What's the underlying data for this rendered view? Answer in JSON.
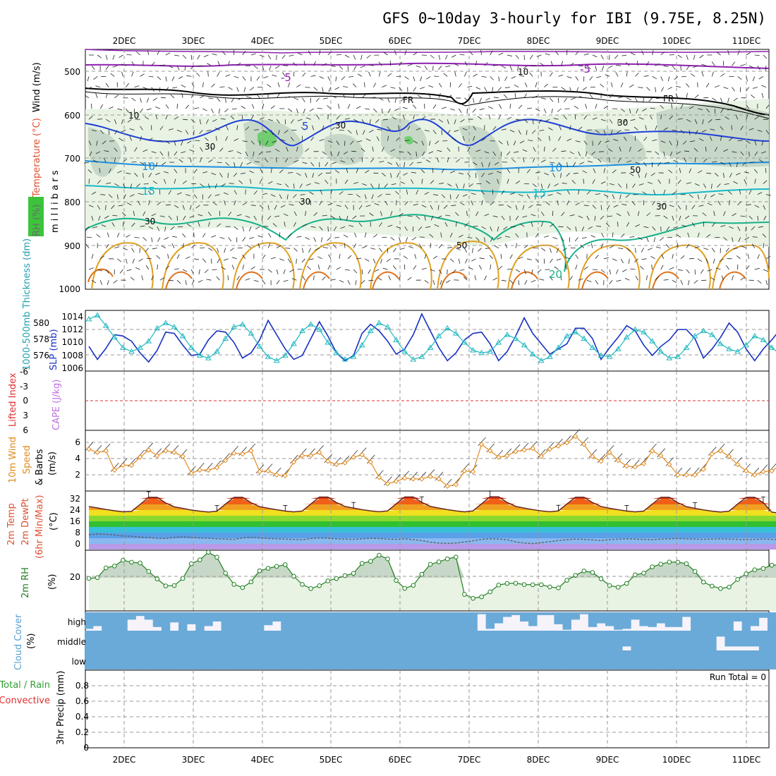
{
  "title": "GFS 0~10day 3-hourly for IBI (9.75E, 8.25N)",
  "day_labels": [
    "2DEC",
    "3DEC",
    "4DEC",
    "5DEC",
    "6DEC",
    "7DEC",
    "8DEC",
    "9DEC",
    "10DEC",
    "11DEC"
  ],
  "chart_data": [
    {
      "type": "contour",
      "panel": "upper-air",
      "ylabel_parts": [
        "RH (%)",
        "Temperature (°C)",
        "Wind (m/s)"
      ],
      "ylabel_units": "m i l l i b a r s",
      "y_ticks": [
        "500",
        "600",
        "700",
        "800",
        "900",
        "1000"
      ],
      "ylim": [
        450,
        1000
      ],
      "annotations": [
        "-5",
        "-5",
        "FR",
        "FR",
        "5",
        "10",
        "10",
        "15",
        "15",
        "20",
        "10",
        "10",
        "30",
        "30",
        "30",
        "50",
        "30",
        "30",
        "30",
        "50"
      ],
      "isotherm_colors": {
        "-5": "#8e1fb0",
        "0": "#000000",
        "5": "#1f3fd6",
        "10": "#1a8fe0",
        "15": "#18b8c8",
        "20": "#18b088",
        "25": "#e0a020",
        "30": "#e07018"
      }
    },
    {
      "type": "line",
      "panel": "slp-thickness",
      "ylabel_left": "1000-500mb Thickness (dm)",
      "ylabel_right": "SLP (mb)",
      "y_ticks_left": [
        "576",
        "578",
        "580"
      ],
      "y_ticks_right": [
        "1006",
        "1008",
        "1010",
        "1012",
        "1014"
      ],
      "series": [
        {
          "color": "#1830c0",
          "values": [
            1008.8,
            1006.8,
            1008.5,
            1010.6,
            1010.4,
            1009.6,
            1007.8,
            1006.4,
            1008.2,
            1011.0,
            1010.8,
            1009.0,
            1007.4,
            1007.6,
            1009.8,
            1011.2,
            1011.0,
            1009.4,
            1007.0,
            1007.8,
            1009.8,
            1012.8,
            1010.6,
            1008.4,
            1006.8,
            1007.4,
            1010.0,
            1012.6,
            1010.4,
            1007.8,
            1006.6,
            1007.4,
            1010.8,
            1012.2,
            1011.2,
            1009.6,
            1007.6,
            1008.4,
            1010.6,
            1013.8,
            1011.2,
            1008.6,
            1006.6,
            1007.8,
            1009.8,
            1010.8,
            1011.0,
            1009.2,
            1006.6,
            1008.0,
            1010.4,
            1013.2,
            1010.8,
            1009.2,
            1007.6,
            1008.4,
            1009.2,
            1011.6,
            1011.6,
            1010.0,
            1006.8,
            1008.6,
            1010.2,
            1012.0,
            1011.2,
            1009.0,
            1007.4,
            1008.8,
            1009.8,
            1011.4,
            1011.4,
            1010.0,
            1007.0,
            1008.4,
            1010.2,
            1012.4,
            1011.0,
            1008.4,
            1006.6,
            1008.4,
            1009.8,
            1011.4
          ]
        },
        {
          "color": "#22b8c0",
          "values": [
            1013.0,
            1013.6,
            1012.0,
            1010.2,
            1008.6,
            1008.0,
            1008.6,
            1009.6,
            1011.6,
            1012.4,
            1011.8,
            1010.4,
            1008.6,
            1007.4,
            1007.0,
            1008.0,
            1010.0,
            1011.8,
            1012.2,
            1010.8,
            1008.8,
            1007.2,
            1006.6,
            1007.4,
            1009.2,
            1011.2,
            1012.2,
            1011.4,
            1009.4,
            1007.8,
            1006.8,
            1007.2,
            1009.0,
            1011.2,
            1012.4,
            1011.8,
            1009.8,
            1008.0,
            1006.8,
            1007.2,
            1008.6,
            1010.4,
            1011.6,
            1010.8,
            1009.4,
            1008.2,
            1007.8,
            1008.0,
            1009.4,
            1010.6,
            1010.0,
            1009.0,
            1007.6,
            1006.6,
            1007.2,
            1008.6,
            1010.4,
            1011.0,
            1010.0,
            1008.6,
            1007.4,
            1007.2,
            1008.4,
            1010.2,
            1011.4,
            1011.0,
            1009.6,
            1008.0,
            1007.0,
            1007.2,
            1008.6,
            1010.4,
            1011.2,
            1010.6,
            1009.2,
            1008.4,
            1008.0,
            1009.0,
            1010.4,
            1009.8,
            1008.6,
            1007.6
          ]
        }
      ]
    },
    {
      "type": "line",
      "panel": "lifted-index",
      "ylabel_left": "Lifted Index",
      "ylabel_right": "CAPE (J/kg)",
      "y_ticks": [
        "-6",
        "-3",
        "0",
        "3",
        "6"
      ],
      "ylim": [
        -6,
        6
      ],
      "series": [
        {
          "name": "",
          "color": "#e03030",
          "values": [
            0
          ]
        }
      ]
    },
    {
      "type": "line",
      "panel": "wind10m",
      "ylabel": [
        "10m Wind",
        "Speed",
        "(m/s)",
        "& Barbs"
      ],
      "y_ticks": [
        "2",
        "4",
        "6"
      ],
      "ylim": [
        0,
        7.2
      ],
      "series": [
        {
          "color": "#e08a20",
          "values": [
            5.2,
            4.8,
            5.0,
            2.6,
            3.2,
            3.2,
            4.2,
            5.1,
            4.4,
            5.0,
            4.8,
            4.3,
            2.2,
            2.6,
            2.6,
            2.9,
            3.8,
            4.7,
            4.6,
            5.0,
            2.4,
            2.5,
            2.0,
            1.9,
            3.6,
            4.4,
            4.4,
            4.8,
            3.7,
            3.3,
            3.5,
            4.2,
            4.5,
            3.6,
            1.7,
            0.9,
            1.2,
            1.6,
            1.5,
            1.5,
            1.8,
            1.5,
            0.6,
            0.8,
            2.5,
            2.4,
            5.8,
            5.0,
            4.2,
            4.4,
            4.9,
            5.1,
            5.3,
            4.3,
            5.2,
            5.6,
            6.0,
            6.8,
            5.8,
            4.3,
            3.7,
            4.8,
            3.8,
            3.1,
            3.0,
            3.4,
            5.0,
            4.4,
            3.3,
            2.0,
            2.0,
            2.0,
            2.7,
            4.6,
            5.0,
            4.3,
            3.3,
            2.5,
            2.0,
            2.4,
            2.5,
            3.2
          ]
        }
      ]
    },
    {
      "type": "area",
      "panel": "temp2m",
      "ylabel": [
        "2m Temp",
        "2m DewPt",
        "(6hr Min/Max)",
        "(°C)"
      ],
      "y_ticks": [
        "0",
        "8",
        "16",
        "24",
        "32"
      ],
      "ylim": [
        -4,
        38
      ],
      "series": [
        {
          "name": "",
          "color": "#602020",
          "values": [
            26.5,
            25.5,
            24.4,
            23.5,
            22.8,
            23.0,
            28.0,
            33.0,
            33.0,
            29.0,
            26.3,
            25.2,
            24.0,
            23.2,
            22.6,
            23.2,
            28.2,
            33.0,
            33.0,
            29.2,
            26.4,
            25.3,
            24.2,
            23.3,
            22.7,
            23.3,
            28.3,
            33.2,
            33.2,
            29.3,
            26.5,
            25.4,
            24.3,
            23.4,
            22.8,
            23.4,
            28.4,
            33.3,
            33.3,
            29.4,
            26.6,
            25.4,
            24.3,
            23.4,
            22.7,
            23.4,
            28.4,
            33.4,
            33.4,
            29.4,
            26.6,
            25.4,
            24.3,
            23.4,
            22.8,
            23.4,
            28.3,
            33.1,
            33.1,
            29.3,
            26.5,
            25.3,
            24.2,
            23.3,
            22.7,
            23.3,
            28.2,
            33.0,
            33.0,
            29.2,
            26.4,
            25.2,
            24.1,
            23.2,
            22.6,
            23.2,
            28.2,
            33.0,
            33.0,
            29.2,
            22.5,
            21.8
          ]
        },
        {
          "name": "",
          "color": "#606060",
          "values": [
            6.5,
            7.0,
            6.8,
            6.4,
            5.6,
            5.4,
            4.8,
            4.5,
            4.0,
            3.8,
            4.6,
            5.0,
            4.6,
            4.2,
            4.0,
            3.6,
            3.4,
            3.2,
            4.2,
            4.6,
            4.2,
            3.8,
            3.6,
            3.4,
            3.2,
            3.0,
            3.8,
            4.2,
            4.0,
            3.6,
            3.4,
            3.2,
            3.6,
            4.0,
            3.8,
            3.4,
            3.2,
            3.6,
            3.0,
            2.4,
            1.2,
            0.6,
            0.3,
            0.6,
            1.4,
            2.2,
            3.2,
            3.6,
            3.4,
            3.0,
            1.4,
            0.6,
            0.2,
            0.8,
            1.6,
            2.4,
            3.0,
            3.4,
            3.2,
            2.8,
            2.4,
            3.0,
            3.4,
            3.6,
            3.4,
            3.2,
            3.0,
            3.4,
            3.6,
            3.8,
            3.6,
            3.4,
            3.2,
            3.4,
            3.6,
            3.4,
            3.2,
            3.0,
            3.2,
            3.4,
            3.2,
            3.0
          ]
        }
      ]
    },
    {
      "type": "area",
      "panel": "rh2m",
      "ylabel": [
        "2m RH",
        "(%)"
      ],
      "y_ticks": [
        "20"
      ],
      "ylim": [
        0,
        40
      ],
      "series": [
        {
          "name": "",
          "color": "#208020",
          "values": [
            19.6,
            20.1,
            26.0,
            27.1,
            30.6,
            29.4,
            28.9,
            23.8,
            19.3,
            15.1,
            15.3,
            19.6,
            28.5,
            30.8,
            35.4,
            32.4,
            22.8,
            16.0,
            14.1,
            17.5,
            24.2,
            25.7,
            26.9,
            27.9,
            20.9,
            16.0,
            13.5,
            15.2,
            18.1,
            19.5,
            21.3,
            22.7,
            28.7,
            29.9,
            33.6,
            31.4,
            18.4,
            13.6,
            15.4,
            22.1,
            28.1,
            29.6,
            31.4,
            32.5,
            10.0,
            7.6,
            8.5,
            11.5,
            15.6,
            16.6,
            16.7,
            15.9,
            15.8,
            15.8,
            14.5,
            13.9,
            18.5,
            21.4,
            24.1,
            23.2,
            19.4,
            15.3,
            14.3,
            16.6,
            21.8,
            22.8,
            26.6,
            28.2,
            29.5,
            29.4,
            28.5,
            23.8,
            17.4,
            15.0,
            13.5,
            14.4,
            19.0,
            22.4,
            24.8,
            25.6,
            27.6,
            27.7
          ]
        }
      ]
    },
    {
      "type": "bar",
      "panel": "cloud-cover",
      "ylabel": [
        "Cloud Cover",
        "(%)"
      ],
      "levels": [
        "high",
        "middle",
        "low"
      ],
      "series": [
        {
          "name": "high",
          "color": "#6aaad8",
          "values": [
            90,
            75,
            100,
            100,
            100,
            40,
            20,
            40,
            80,
            100,
            55,
            100,
            65,
            100,
            75,
            50,
            100,
            100,
            100,
            100,
            100,
            70,
            50,
            100,
            100,
            100,
            100,
            100,
            100,
            100,
            100,
            100,
            100,
            100,
            100,
            100,
            100,
            100,
            100,
            100,
            100,
            100,
            100,
            100,
            100,
            100,
            10,
            90,
            60,
            25,
            15,
            50,
            75,
            15,
            15,
            65,
            95,
            40,
            10,
            80,
            60,
            75,
            95,
            90,
            40,
            75,
            80,
            60,
            80,
            80,
            25,
            100,
            100,
            100,
            100,
            100,
            50,
            100,
            75,
            30,
            100,
            100
          ]
        },
        {
          "name": "middle",
          "color": "#6aaad8",
          "values": [
            100,
            100,
            100,
            100,
            100,
            100,
            100,
            100,
            100,
            100,
            100,
            100,
            100,
            100,
            100,
            100,
            100,
            100,
            100,
            100,
            100,
            100,
            100,
            100,
            100,
            100,
            100,
            100,
            100,
            100,
            100,
            100,
            100,
            100,
            100,
            100,
            100,
            100,
            100,
            100,
            100,
            100,
            100,
            100,
            100,
            100,
            100,
            100,
            100,
            100,
            100,
            100,
            100,
            100,
            100,
            100,
            100,
            100,
            100,
            100,
            100,
            100,
            100,
            80,
            100,
            100,
            100,
            100,
            100,
            100,
            100,
            100,
            100,
            100,
            30,
            80,
            80,
            80,
            80,
            100,
            100,
            100
          ]
        },
        {
          "name": "low",
          "color": "#6aaad8",
          "values": [
            100,
            100,
            100,
            100,
            100,
            100,
            100,
            100,
            100,
            100,
            100,
            100,
            100,
            100,
            100,
            100,
            100,
            100,
            100,
            100,
            100,
            100,
            100,
            100,
            100,
            100,
            100,
            100,
            100,
            100,
            100,
            100,
            100,
            100,
            100,
            100,
            100,
            100,
            100,
            100,
            100,
            100,
            100,
            100,
            100,
            100,
            100,
            100,
            100,
            100,
            100,
            100,
            100,
            100,
            100,
            100,
            100,
            100,
            100,
            100,
            100,
            100,
            100,
            100,
            100,
            100,
            100,
            100,
            100,
            100,
            100,
            100,
            100,
            100,
            100,
            100,
            100,
            100,
            100,
            100,
            100,
            100
          ]
        }
      ]
    },
    {
      "type": "bar",
      "panel": "precip",
      "ylabel_lines": [
        "Total / Rain",
        "Convective"
      ],
      "ylabel": "3hr Precip (mm)",
      "annotation": "Run Total = 0",
      "y_ticks": [
        "0",
        "0.2",
        "0.4",
        "0.6",
        "0.8"
      ],
      "ylim": [
        0,
        0.9
      ],
      "series": [
        {
          "name": "",
          "color": "#30a030",
          "values": [
            0
          ]
        }
      ]
    }
  ]
}
